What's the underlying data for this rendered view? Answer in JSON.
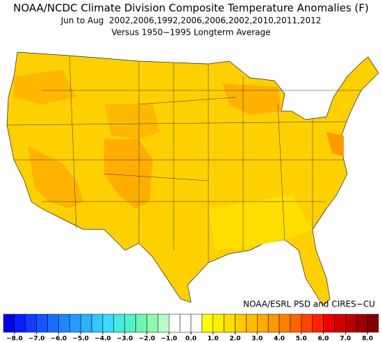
{
  "map": {
    "title": "NOAA/NCDC Climate Division Composite Temperature Anomalies (F)",
    "subtitle": "Jun to Aug  2002,2006,1992,2006,2006,2002,2010,2011,2012",
    "baseline": "Versus 1950−1995 Longterm Average",
    "credit": "NOAA/ESRL PSD and CIRES−CU",
    "colorbar": {
      "xlim": [
        -8.5,
        8.5
      ],
      "colors": [
        "#0000e0",
        "#0a1eff",
        "#0f3cff",
        "#1455ff",
        "#1a6eff",
        "#2085ff",
        "#289bff",
        "#30b0ff",
        "#38c5ff",
        "#40d8f8",
        "#48e8e0",
        "#55f0c8",
        "#70f5b0",
        "#90f8a8",
        "#b8fbc8",
        "#ffffff",
        "#ffffff",
        "#ffffff",
        "#ffff00",
        "#ffee00",
        "#ffdd00",
        "#ffcc00",
        "#ffbb00",
        "#ffaa00",
        "#ff9900",
        "#ff8000",
        "#ff6600",
        "#ff4400",
        "#ff2200",
        "#ee0000",
        "#d40000",
        "#b80000",
        "#9a0000",
        "#800000"
      ],
      "ticks": [
        {
          "value": -8,
          "label": "−8.0"
        },
        {
          "value": -7,
          "label": "−7.0"
        },
        {
          "value": -6,
          "label": "−6.0"
        },
        {
          "value": -5,
          "label": "−5.0"
        },
        {
          "value": -4,
          "label": "−4.0"
        },
        {
          "value": -3,
          "label": "−3.0"
        },
        {
          "value": -2,
          "label": "−2.0"
        },
        {
          "value": -1,
          "label": "−1.0"
        },
        {
          "value": 0,
          "label": "0.0"
        },
        {
          "value": 1,
          "label": "1.0"
        },
        {
          "value": 2,
          "label": "2.0"
        },
        {
          "value": 3,
          "label": "3.0"
        },
        {
          "value": 4,
          "label": "4.0"
        },
        {
          "value": 5,
          "label": "5.0"
        },
        {
          "value": 6,
          "label": "6.0"
        },
        {
          "value": 7,
          "label": "7.0"
        },
        {
          "value": 8,
          "label": "8.0"
        }
      ]
    }
  }
}
